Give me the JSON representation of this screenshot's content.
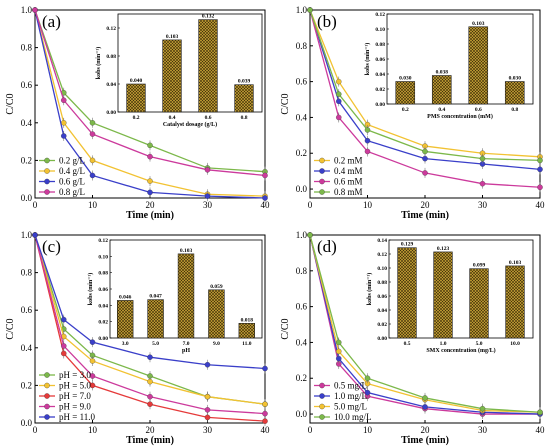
{
  "chart_data": [
    {
      "type": "line",
      "panel_label": "(a)",
      "xlabel": "Time (min)",
      "ylabel": "C/C0",
      "x_ticks": [
        "0",
        "10",
        "20",
        "30",
        "40"
      ],
      "y_ticks": [
        "0.0",
        "0.2",
        "0.4",
        "0.6",
        "0.8",
        "1.0"
      ],
      "xlim": [
        0,
        40
      ],
      "ylim": [
        0,
        1.0
      ],
      "legend_position": "bottom-left",
      "x": [
        0,
        5,
        10,
        20,
        30,
        40
      ],
      "series": [
        {
          "name": "0.2 g/L",
          "color": "#7cb84a",
          "values": [
            1.0,
            0.56,
            0.4,
            0.28,
            0.16,
            0.14
          ]
        },
        {
          "name": "0.4 g/L",
          "color": "#f2c232",
          "values": [
            1.0,
            0.4,
            0.2,
            0.09,
            0.02,
            0.01
          ]
        },
        {
          "name": "0.6 g/L",
          "color": "#3a3fc9",
          "values": [
            1.0,
            0.33,
            0.12,
            0.03,
            0.01,
            0.0
          ]
        },
        {
          "name": "0.8 g/L",
          "color": "#cc3a9c",
          "values": [
            1.0,
            0.52,
            0.34,
            0.22,
            0.15,
            0.12
          ]
        }
      ],
      "inset": {
        "type": "bar",
        "xlabel": "Catalyst dosage (g/L)",
        "ylabel": "kobs (min⁻¹)",
        "categories": [
          "0.2",
          "0.4",
          "0.6",
          "0.8"
        ],
        "values": [
          0.04,
          0.103,
          0.132,
          0.039
        ],
        "value_labels": [
          "0.040",
          "0.103",
          "0.132",
          "0.039"
        ],
        "y_ticks": [
          "0.00",
          "0.04",
          "0.08",
          "0.12"
        ],
        "ylim": [
          0,
          0.14
        ]
      }
    },
    {
      "type": "line",
      "panel_label": "(b)",
      "xlabel": "Time (min)",
      "ylabel": "C/C0",
      "x_ticks": [
        "0",
        "10",
        "20",
        "30",
        "40"
      ],
      "y_ticks": [
        "0.0",
        "0.2",
        "0.4",
        "0.6",
        "0.8",
        "1.0"
      ],
      "xlim": [
        0,
        40
      ],
      "ylim": [
        -0.05,
        1.0
      ],
      "legend_position": "bottom-left",
      "x": [
        0,
        5,
        10,
        20,
        30,
        40
      ],
      "series": [
        {
          "name": "0.2 mM",
          "color": "#f2c232",
          "values": [
            1.0,
            0.6,
            0.36,
            0.24,
            0.2,
            0.18
          ]
        },
        {
          "name": "0.4 mM",
          "color": "#3a3fc9",
          "values": [
            1.0,
            0.49,
            0.27,
            0.17,
            0.14,
            0.11
          ]
        },
        {
          "name": "0.6 mM",
          "color": "#cc3a9c",
          "values": [
            1.0,
            0.4,
            0.21,
            0.09,
            0.03,
            0.01
          ]
        },
        {
          "name": "0.8 mM",
          "color": "#7cb84a",
          "values": [
            1.0,
            0.53,
            0.33,
            0.21,
            0.17,
            0.16
          ]
        }
      ],
      "inset": {
        "type": "bar",
        "xlabel": "PMS concentration (mM)",
        "ylabel": "kobs (min⁻¹)",
        "categories": [
          "0.2",
          "0.4",
          "0.6",
          "0.8"
        ],
        "values": [
          0.03,
          0.038,
          0.103,
          0.03
        ],
        "value_labels": [
          "0.030",
          "0.038",
          "0.103",
          "0.030"
        ],
        "y_ticks": [
          "0.00",
          "0.02",
          "0.04",
          "0.06",
          "0.08",
          "0.10",
          "0.12"
        ],
        "ylim": [
          0,
          0.12
        ]
      }
    },
    {
      "type": "line",
      "panel_label": "(c)",
      "xlabel": "Time (min)",
      "ylabel": "C/C0",
      "x_ticks": [
        "0",
        "10",
        "20",
        "30",
        "40"
      ],
      "y_ticks": [
        "0.0",
        "0.2",
        "0.4",
        "0.6",
        "0.8",
        "1.0"
      ],
      "xlim": [
        0,
        40
      ],
      "ylim": [
        0,
        1.0
      ],
      "legend_position": "bottom-left",
      "x": [
        0,
        5,
        10,
        20,
        30,
        40
      ],
      "series": [
        {
          "name": "pH = 3.0",
          "color": "#7cb84a",
          "values": [
            1.0,
            0.5,
            0.36,
            0.25,
            0.14,
            0.1
          ]
        },
        {
          "name": "pH = 5.0",
          "color": "#f2c232",
          "values": [
            1.0,
            0.46,
            0.33,
            0.22,
            0.14,
            0.1
          ]
        },
        {
          "name": "pH = 7.0",
          "color": "#e53a3a",
          "values": [
            1.0,
            0.37,
            0.2,
            0.1,
            0.03,
            0.01
          ]
        },
        {
          "name": "pH = 9.0",
          "color": "#cc3a9c",
          "values": [
            1.0,
            0.41,
            0.25,
            0.14,
            0.07,
            0.05
          ]
        },
        {
          "name": "pH = 11.0",
          "color": "#3a3fc9",
          "values": [
            1.0,
            0.55,
            0.43,
            0.35,
            0.31,
            0.29
          ]
        }
      ],
      "inset": {
        "type": "bar",
        "xlabel": "pH",
        "ylabel": "kobs (min⁻¹)",
        "categories": [
          "3.0",
          "5.0",
          "7.0",
          "9.0",
          "11.0"
        ],
        "values": [
          0.046,
          0.047,
          0.103,
          0.059,
          0.018
        ],
        "value_labels": [
          "0.046",
          "0.047",
          "0.103",
          "0.059",
          "0.018"
        ],
        "y_ticks": [
          "0.00",
          "0.02",
          "0.04",
          "0.06",
          "0.08",
          "0.10",
          "0.12"
        ],
        "ylim": [
          0,
          0.12
        ]
      }
    },
    {
      "type": "line",
      "panel_label": "(d)",
      "xlabel": "Time (min)",
      "ylabel": "C/C0",
      "x_ticks": [
        "0",
        "10",
        "20",
        "30",
        "40"
      ],
      "y_ticks": [
        "0.0",
        "0.2",
        "0.4",
        "0.6",
        "0.8",
        "1.0"
      ],
      "xlim": [
        0,
        40
      ],
      "ylim": [
        -0.05,
        1.0
      ],
      "legend_position": "bottom-left",
      "x": [
        0,
        5,
        10,
        20,
        30,
        40
      ],
      "series": [
        {
          "name": "0.5 mg/L",
          "color": "#cc3a9c",
          "values": [
            1.0,
            0.28,
            0.1,
            0.03,
            0.0,
            0.0
          ]
        },
        {
          "name": "1.0 mg/L",
          "color": "#3a3fc9",
          "values": [
            1.0,
            0.31,
            0.12,
            0.04,
            0.01,
            0.0
          ]
        },
        {
          "name": "5.0 mg/L",
          "color": "#f2c232",
          "values": [
            1.0,
            0.35,
            0.17,
            0.08,
            0.02,
            0.01
          ]
        },
        {
          "name": "10.0 mg/L",
          "color": "#7cb84a",
          "values": [
            1.0,
            0.4,
            0.2,
            0.09,
            0.03,
            0.01
          ]
        }
      ],
      "inset": {
        "type": "bar",
        "xlabel": "SMX concentration (mg/L)",
        "ylabel": "kobs (min⁻¹)",
        "categories": [
          "0.5",
          "1.0",
          "5.0",
          "10.0"
        ],
        "values": [
          0.129,
          0.123,
          0.099,
          0.103
        ],
        "value_labels": [
          "0.129",
          "0.123",
          "0.099",
          "0.103"
        ],
        "y_ticks": [
          "0.00",
          "0.02",
          "0.04",
          "0.06",
          "0.08",
          "0.10",
          "0.12",
          "0.14"
        ],
        "ylim": [
          0,
          0.14
        ]
      }
    }
  ]
}
